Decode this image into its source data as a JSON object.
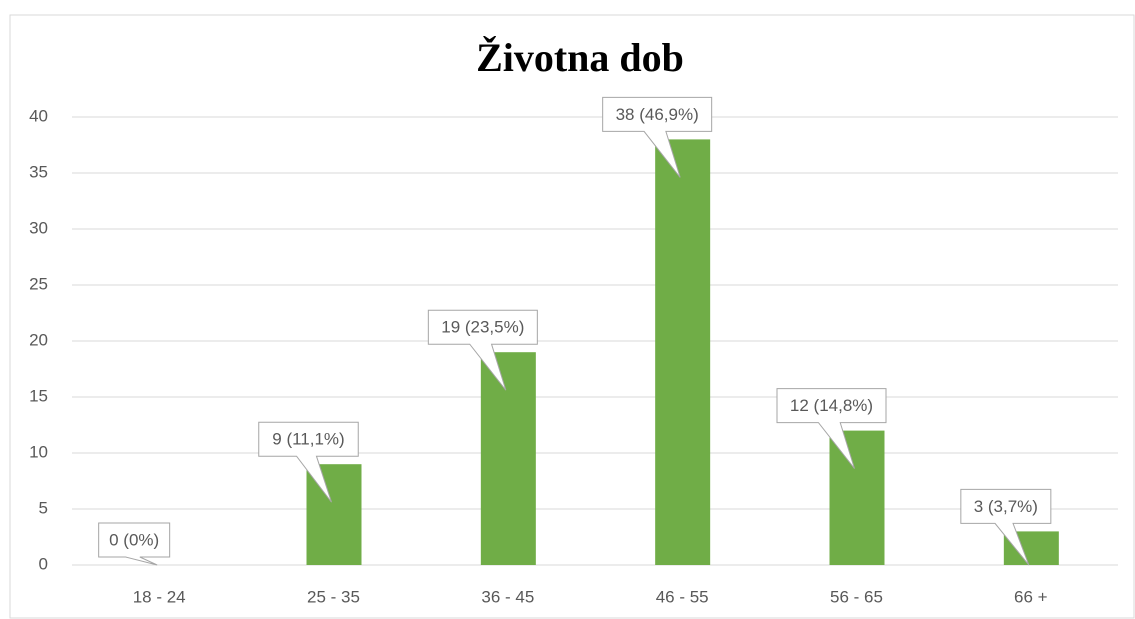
{
  "chart_data": {
    "type": "bar",
    "title": "Životna dob",
    "categories": [
      "18 - 24",
      "25 - 35",
      "36 - 45",
      "46 - 55",
      "56 - 65",
      "66 +"
    ],
    "values": [
      0,
      9,
      19,
      38,
      12,
      3
    ],
    "value_labels": [
      "0 (0%)",
      "9 (11,1%)",
      "19 (23,5%)",
      "38 (46,9%)",
      "12 (14,8%)",
      "3 (3,7%)"
    ],
    "color": "#70ad47",
    "ylim": [
      0,
      40
    ],
    "yticks": [
      0,
      5,
      10,
      15,
      20,
      25,
      30,
      35,
      40
    ],
    "grid": true
  }
}
